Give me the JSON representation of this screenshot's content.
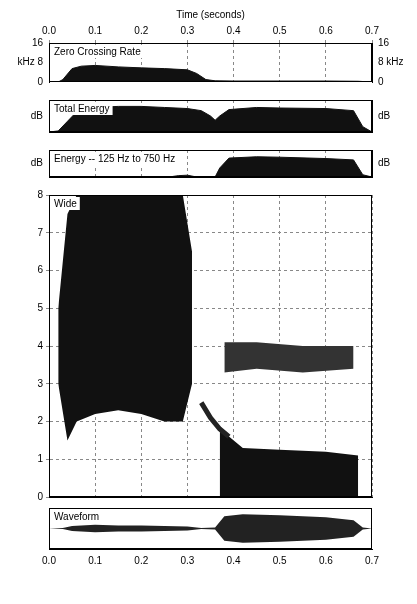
{
  "chart_data": [
    {
      "type": "line",
      "title": "Zero Crossing Rate",
      "xlabel": "Time (seconds)",
      "xlim": [
        0,
        0.7
      ],
      "xticks": [
        {
          "value": 0,
          "label": "0.0"
        },
        0.1,
        0.2,
        0.3,
        0.4,
        0.5,
        0.6,
        0.7
      ],
      "ylim": [
        0,
        16
      ],
      "yticks": [
        0,
        {
          "value": 8,
          "label": "kHz 8"
        },
        16
      ],
      "y2lim": [
        0,
        16
      ],
      "y2ticks": [
        0,
        {
          "value": 8,
          "label": "8 kHz"
        },
        16
      ],
      "grid": "x",
      "series": [
        {
          "type": "area",
          "color": "#111111",
          "x": [
            0,
            0.02,
            0.03,
            0.05,
            0.07,
            0.1,
            0.15,
            0.2,
            0.25,
            0.3,
            0.32,
            0.34,
            0.36,
            0.4,
            0.5,
            0.6,
            0.67,
            0.7
          ],
          "values": [
            0,
            0,
            1,
            5.5,
            6.5,
            6.8,
            6.2,
            5.8,
            5.5,
            5.0,
            3.5,
            1.0,
            0.5,
            0.4,
            0.4,
            0.4,
            0.3,
            0
          ]
        }
      ]
    },
    {
      "type": "line",
      "title": "Total Energy",
      "xlim": [
        0,
        0.7
      ],
      "xticks": [
        {
          "value": 0,
          "label": "0.0"
        },
        0.1,
        0.2,
        0.3,
        0.4,
        0.5,
        0.6,
        0.7
      ],
      "ylim": [
        0,
        60
      ],
      "yticks": [
        {
          "value": 30,
          "label": "dB"
        }
      ],
      "y2lim": [
        0,
        60
      ],
      "y2ticks": [
        {
          "value": 30,
          "label": "dB"
        }
      ],
      "grid": "x",
      "tick_labels": "y",
      "series": [
        {
          "type": "area",
          "color": "#111111",
          "x": [
            0,
            0.02,
            0.04,
            0.06,
            0.1,
            0.15,
            0.2,
            0.25,
            0.3,
            0.33,
            0.35,
            0.36,
            0.37,
            0.39,
            0.45,
            0.5,
            0.6,
            0.66,
            0.68,
            0.7
          ],
          "values": [
            0,
            2,
            20,
            38,
            46,
            48,
            48,
            46,
            44,
            40,
            30,
            22,
            30,
            42,
            46,
            45,
            44,
            40,
            10,
            0
          ]
        }
      ]
    },
    {
      "type": "line",
      "title": "Energy -- 125 Hz to 750 Hz",
      "xlim": [
        0,
        0.7
      ],
      "xticks": [
        {
          "value": 0,
          "label": "0.0"
        },
        0.1,
        0.2,
        0.3,
        0.4,
        0.5,
        0.6,
        0.7
      ],
      "ylim": [
        0,
        60
      ],
      "yticks": [
        {
          "value": 30,
          "label": "dB"
        }
      ],
      "y2lim": [
        0,
        60
      ],
      "y2ticks": [
        {
          "value": 30,
          "label": "dB"
        }
      ],
      "grid": "x",
      "tick_labels": "y",
      "series": [
        {
          "type": "area",
          "color": "#111111",
          "x": [
            0,
            0.26,
            0.28,
            0.3,
            0.32,
            0.36,
            0.37,
            0.39,
            0.45,
            0.5,
            0.6,
            0.66,
            0.68,
            0.7
          ],
          "values": [
            0,
            0,
            3,
            4,
            0,
            0,
            20,
            42,
            45,
            44,
            41,
            38,
            5,
            0
          ]
        }
      ]
    },
    {
      "type": "line",
      "title": "Wide",
      "xlim": [
        0,
        0.7
      ],
      "xticks": [
        {
          "value": 0,
          "label": "0.0"
        },
        0.1,
        0.2,
        0.3,
        0.4,
        0.5,
        0.6,
        0.7
      ],
      "ylim": [
        0,
        8
      ],
      "yticks": [
        0,
        1,
        2,
        3,
        4,
        5,
        6,
        7,
        8
      ],
      "grid": true,
      "tick_labels": "y",
      "series": [
        {
          "type": "band",
          "color": "#111111",
          "x": [
            0.02,
            0.04,
            0.06,
            0.1,
            0.15,
            0.2,
            0.25,
            0.29,
            0.31
          ],
          "low": [
            3.0,
            1.5,
            2.0,
            2.2,
            2.3,
            2.2,
            2.0,
            2.0,
            3.0
          ],
          "high": [
            5.0,
            7.5,
            8,
            8,
            8,
            8,
            8,
            8,
            6.5
          ]
        },
        {
          "type": "line",
          "color": "#222222",
          "x": [
            0.33,
            0.35,
            0.37,
            0.39
          ],
          "values": [
            2.5,
            2.1,
            1.8,
            1.6
          ]
        },
        {
          "type": "band",
          "color": "#111111",
          "x": [
            0.37,
            0.39,
            0.42,
            0.5,
            0.6,
            0.67
          ],
          "low": [
            0,
            0,
            0,
            0,
            0,
            0
          ],
          "high": [
            1.8,
            1.6,
            1.3,
            1.25,
            1.2,
            1.1
          ]
        },
        {
          "type": "band",
          "color": "#333333",
          "x": [
            0.38,
            0.45,
            0.55,
            0.66
          ],
          "low": [
            3.3,
            3.4,
            3.3,
            3.4
          ],
          "high": [
            4.1,
            4.1,
            4.0,
            4.0
          ]
        }
      ]
    },
    {
      "type": "line",
      "title": "Waveform",
      "xlim": [
        0,
        0.7
      ],
      "xticks": [
        {
          "value": 0,
          "label": "0.0"
        },
        0.1,
        0.2,
        0.3,
        0.4,
        0.5,
        0.6,
        0.7
      ],
      "ylim": [
        -1,
        1
      ],
      "grid": false,
      "tick_labels": "x",
      "series": [
        {
          "type": "band",
          "color": "#222222",
          "x": [
            0,
            0.03,
            0.05,
            0.1,
            0.15,
            0.2,
            0.25,
            0.3,
            0.33,
            0.36,
            0.38,
            0.42,
            0.5,
            0.6,
            0.66,
            0.68,
            0.7
          ],
          "low": [
            0,
            -0.02,
            -0.12,
            -0.18,
            -0.15,
            -0.15,
            -0.12,
            -0.1,
            -0.03,
            -0.05,
            -0.6,
            -0.7,
            -0.65,
            -0.55,
            -0.4,
            -0.05,
            0
          ],
          "high": [
            0,
            0.02,
            0.12,
            0.18,
            0.15,
            0.15,
            0.12,
            0.1,
            0.03,
            0.05,
            0.6,
            0.7,
            0.65,
            0.55,
            0.4,
            0.05,
            0
          ]
        }
      ]
    }
  ]
}
